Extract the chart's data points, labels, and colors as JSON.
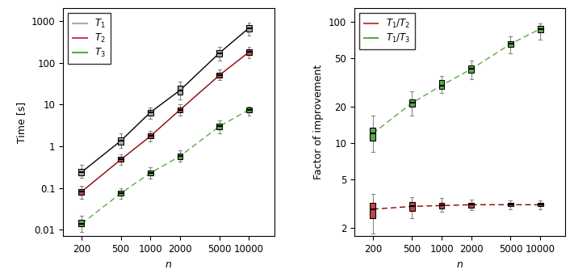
{
  "n_values": [
    200,
    500,
    1000,
    2000,
    5000,
    10000
  ],
  "n_labels": [
    "200",
    "500",
    "1000",
    "2000",
    "5000",
    "10000"
  ],
  "T1_boxes": [
    {
      "whislo": 0.175,
      "q1": 0.2,
      "med": 0.24,
      "q3": 0.29,
      "whishi": 0.36
    },
    {
      "whislo": 0.9,
      "q1": 1.1,
      "med": 1.35,
      "q3": 1.65,
      "whishi": 2.0
    },
    {
      "whislo": 4.5,
      "q1": 5.5,
      "med": 6.5,
      "q3": 7.5,
      "whishi": 8.5
    },
    {
      "whislo": 13,
      "q1": 17,
      "med": 22,
      "q3": 28,
      "whishi": 35
    },
    {
      "whislo": 110,
      "q1": 140,
      "med": 170,
      "q3": 200,
      "whishi": 240
    },
    {
      "whislo": 450,
      "q1": 560,
      "med": 680,
      "q3": 800,
      "whishi": 900
    }
  ],
  "T2_boxes": [
    {
      "whislo": 0.055,
      "q1": 0.07,
      "med": 0.082,
      "q3": 0.093,
      "whishi": 0.112
    },
    {
      "whislo": 0.36,
      "q1": 0.42,
      "med": 0.48,
      "q3": 0.55,
      "whishi": 0.63
    },
    {
      "whislo": 1.3,
      "q1": 1.55,
      "med": 1.75,
      "q3": 2.0,
      "whishi": 2.3
    },
    {
      "whislo": 5.5,
      "q1": 6.5,
      "med": 7.5,
      "q3": 8.5,
      "whishi": 10.0
    },
    {
      "whislo": 38,
      "q1": 44,
      "med": 50,
      "q3": 57,
      "whishi": 68
    },
    {
      "whislo": 130,
      "q1": 155,
      "med": 180,
      "q3": 210,
      "whishi": 240
    }
  ],
  "T3_boxes": [
    {
      "whislo": 0.009,
      "q1": 0.012,
      "med": 0.014,
      "q3": 0.017,
      "whishi": 0.022
    },
    {
      "whislo": 0.055,
      "q1": 0.065,
      "med": 0.075,
      "q3": 0.085,
      "whishi": 0.1
    },
    {
      "whislo": 0.17,
      "q1": 0.2,
      "med": 0.23,
      "q3": 0.26,
      "whishi": 0.32
    },
    {
      "whislo": 0.42,
      "q1": 0.5,
      "med": 0.58,
      "q3": 0.68,
      "whishi": 0.8
    },
    {
      "whislo": 2.0,
      "q1": 2.5,
      "med": 3.0,
      "q3": 3.5,
      "whishi": 4.2
    },
    {
      "whislo": 5.5,
      "q1": 6.5,
      "med": 7.5,
      "q3": 8.5,
      "whishi": 9.0
    }
  ],
  "R12_boxes": [
    {
      "whislo": 1.8,
      "q1": 2.4,
      "med": 2.85,
      "q3": 3.2,
      "whishi": 3.8
    },
    {
      "whislo": 2.4,
      "q1": 2.75,
      "med": 3.0,
      "q3": 3.25,
      "whishi": 3.6
    },
    {
      "whislo": 2.7,
      "q1": 2.9,
      "med": 3.05,
      "q3": 3.2,
      "whishi": 3.5
    },
    {
      "whislo": 2.8,
      "q1": 2.95,
      "med": 3.1,
      "q3": 3.2,
      "whishi": 3.4
    },
    {
      "whislo": 2.85,
      "q1": 3.0,
      "med": 3.1,
      "q3": 3.2,
      "whishi": 3.35
    },
    {
      "whislo": 2.85,
      "q1": 3.0,
      "med": 3.1,
      "q3": 3.2,
      "whishi": 3.35
    }
  ],
  "R13_boxes": [
    {
      "whislo": 8.5,
      "q1": 10.5,
      "med": 12.0,
      "q3": 13.5,
      "whishi": 17.0
    },
    {
      "whislo": 17,
      "q1": 20,
      "med": 21.5,
      "q3": 23,
      "whishi": 27
    },
    {
      "whislo": 26,
      "q1": 28,
      "med": 30,
      "q3": 33,
      "whishi": 36
    },
    {
      "whislo": 34,
      "q1": 38,
      "med": 41,
      "q3": 44,
      "whishi": 48
    },
    {
      "whislo": 55,
      "q1": 62,
      "med": 66,
      "q3": 70,
      "whishi": 76
    },
    {
      "whislo": 72,
      "q1": 82,
      "med": 88,
      "q3": 93,
      "whishi": 98
    }
  ],
  "color_T1": "#aaaaaa",
  "color_T2": "#c0474a",
  "color_T3": "#5aaa46",
  "color_R12": "#c0474a",
  "color_R13": "#5aaa46",
  "left_ylabel": "Time [s]",
  "left_xlabel": "n",
  "right_ylabel": "Factor of improvement",
  "right_xlabel": "n",
  "left_ylim": [
    0.007,
    2000
  ],
  "right_ylim": [
    1.7,
    130
  ],
  "left_yticks": [
    0.01,
    0.1,
    1,
    10,
    100,
    1000
  ],
  "left_ytick_labels": [
    "0.01",
    "0.1",
    "1",
    "10",
    "100",
    "1000"
  ],
  "right_yticks": [
    2,
    5,
    10,
    20,
    50,
    100
  ],
  "right_ytick_labels": [
    "2",
    "5",
    "10",
    "20",
    "50",
    "100"
  ]
}
